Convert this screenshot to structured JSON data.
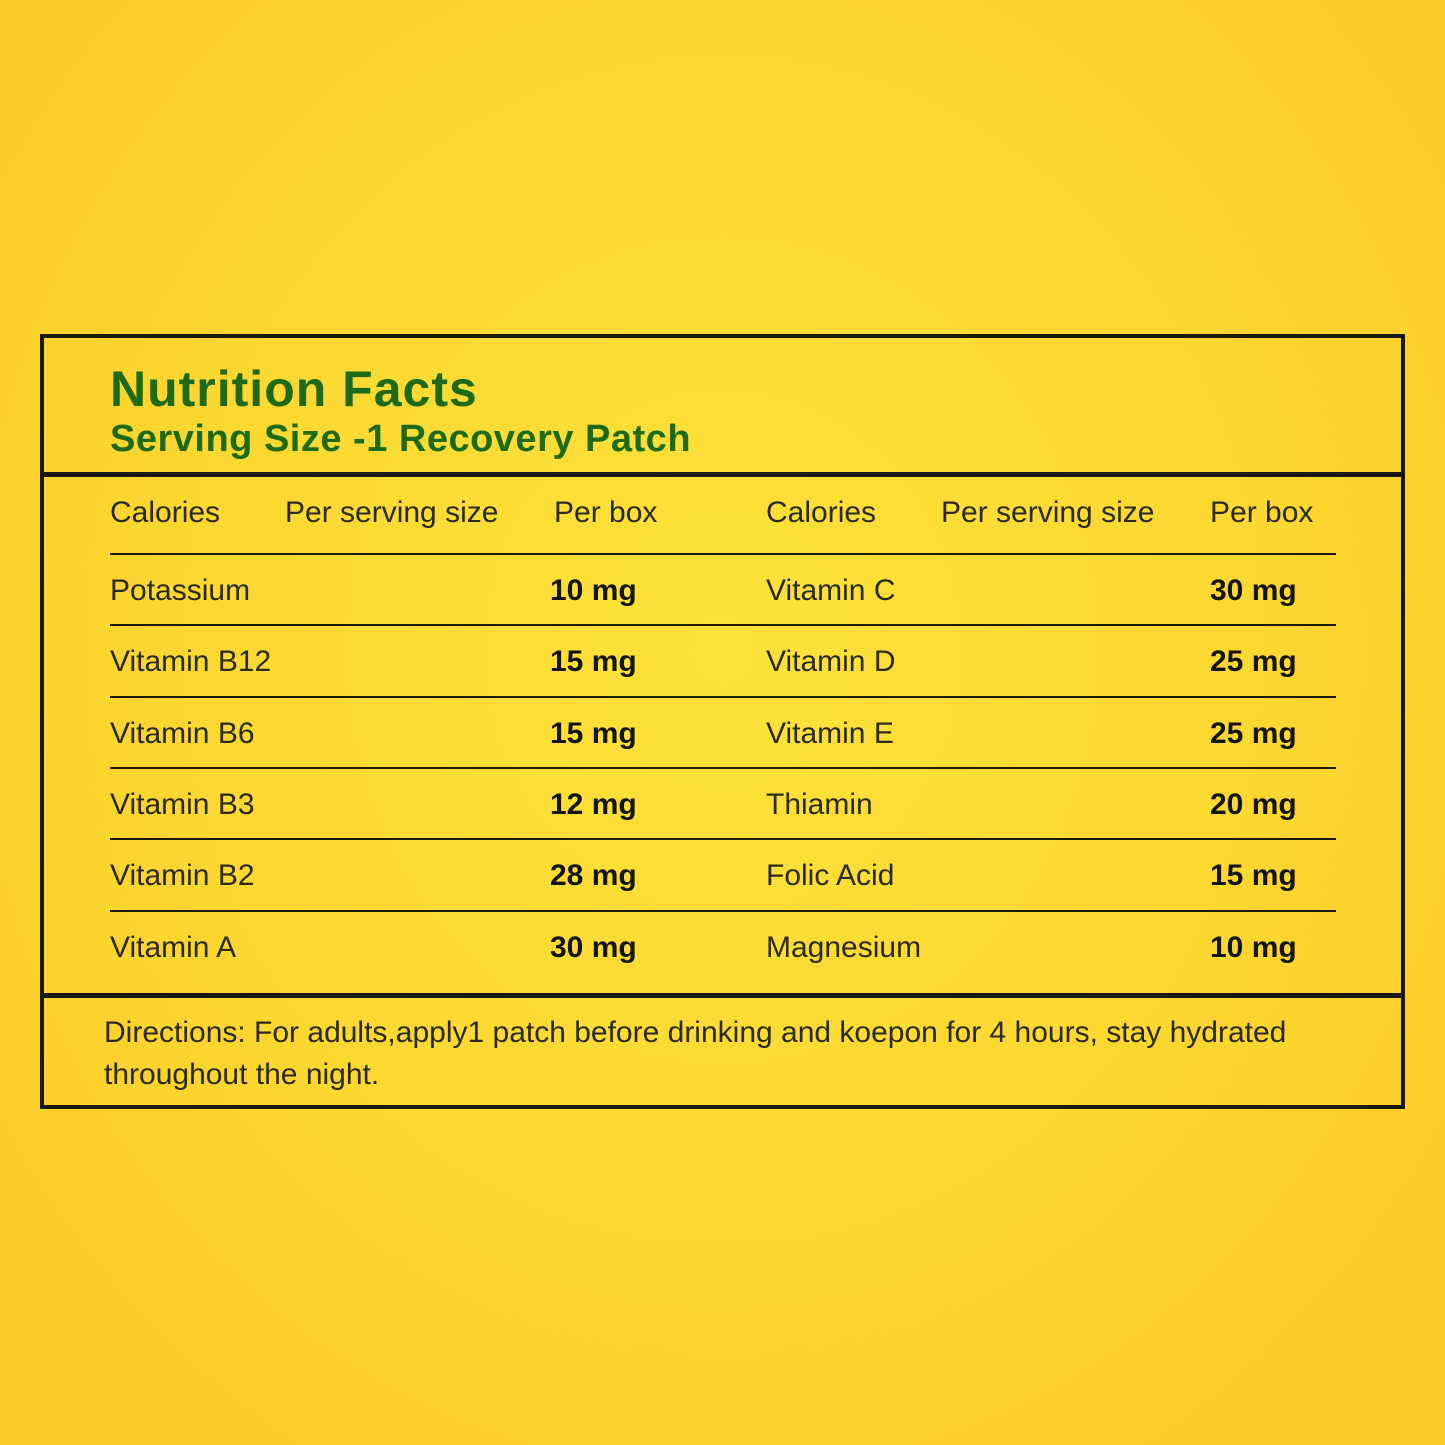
{
  "title": "Nutrition Facts",
  "subtitle": "Serving Size -1 Recovery Patch",
  "columns": [
    "Calories",
    "Per serving size",
    "Per box",
    "Calories",
    "Per serving size",
    "Per box"
  ],
  "rows": [
    {
      "left_name": "Potassium",
      "left_value": "10 mg",
      "right_name": "Vitamin C",
      "right_value": "30 mg"
    },
    {
      "left_name": "Vitamin B12",
      "left_value": "15 mg",
      "right_name": "Vitamin D",
      "right_value": "25 mg"
    },
    {
      "left_name": "Vitamin B6",
      "left_value": "15 mg",
      "right_name": "Vitamin E",
      "right_value": "25 mg"
    },
    {
      "left_name": "Vitamin B3",
      "left_value": "12 mg",
      "right_name": "Thiamin",
      "right_value": "20 mg"
    },
    {
      "left_name": "Vitamin B2",
      "left_value": "28 mg",
      "right_name": "Folic Acid",
      "right_value": "15 mg"
    },
    {
      "left_name": "Vitamin A",
      "left_value": "30 mg",
      "right_name": "Magnesium",
      "right_value": "10 mg"
    }
  ],
  "directions": "Directions: For adults,apply1 patch before drinking and koepon for 4 hours, stay hydrated throughout the night.",
  "colors": {
    "background": "#fcd730",
    "heading": "#1d6a1a",
    "border": "#1a1a12",
    "text": "#2a2a20"
  }
}
